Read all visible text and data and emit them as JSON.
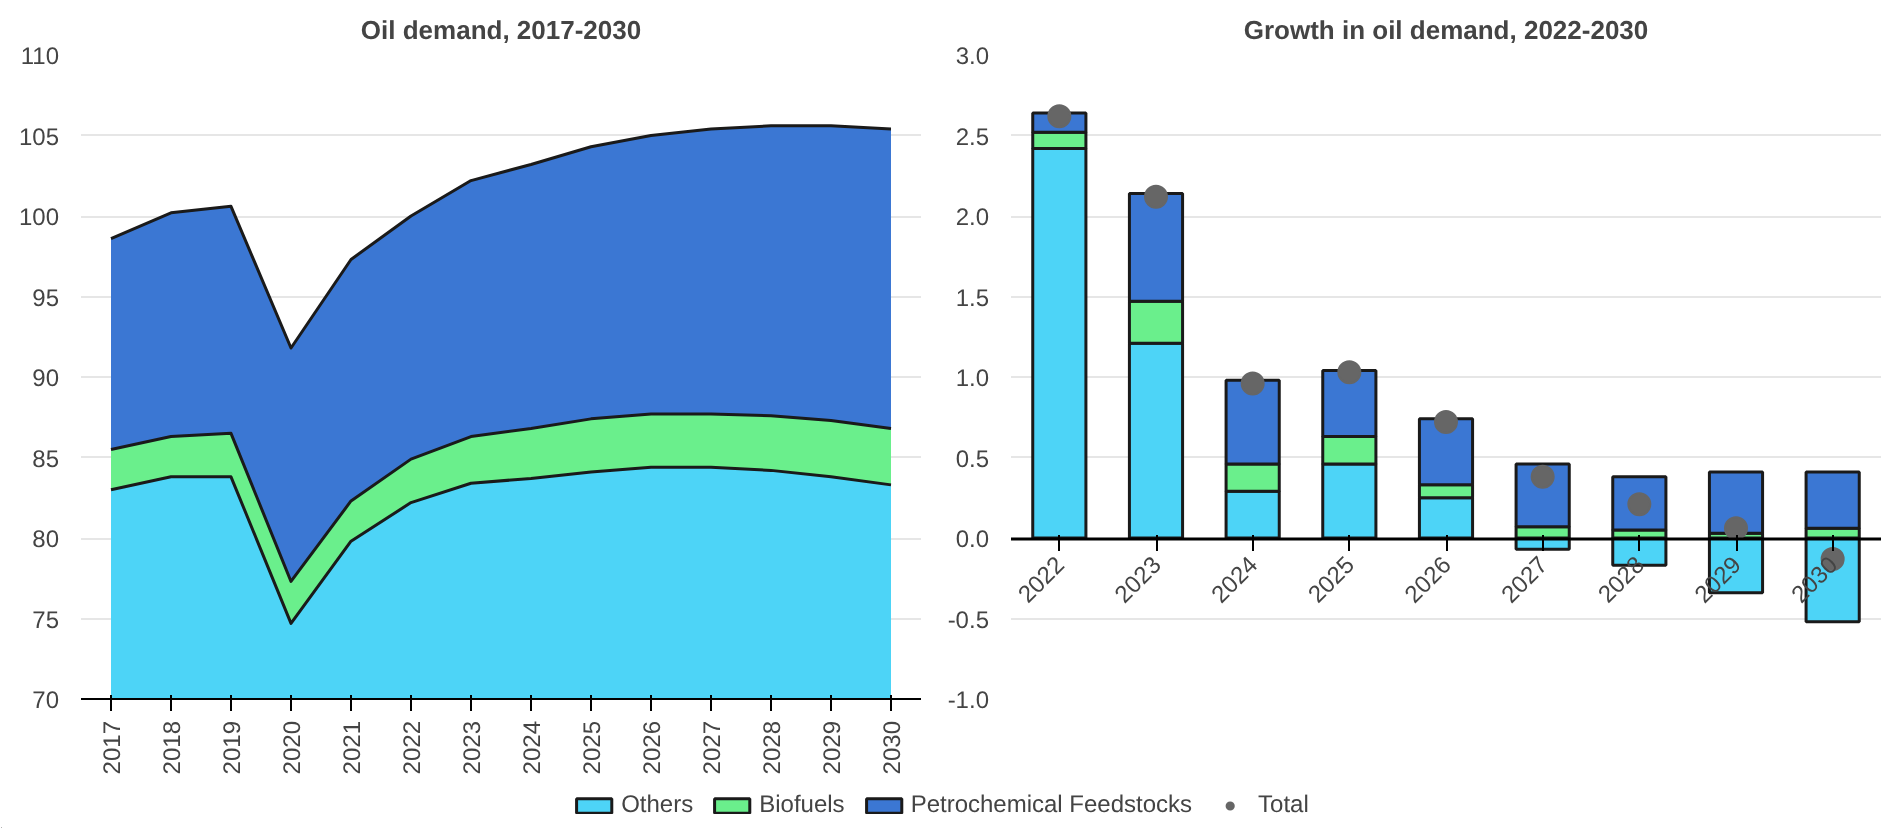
{
  "chart_data": [
    {
      "type": "area",
      "title": "Oil demand, 2017-2030",
      "grid": "y",
      "categories": [
        "2017",
        "2018",
        "2019",
        "2020",
        "2021",
        "2022",
        "2023",
        "2024",
        "2025",
        "2026",
        "2027",
        "2028",
        "2029",
        "2030"
      ],
      "ylim": [
        70,
        110
      ],
      "yticks": [
        70,
        75,
        80,
        85,
        90,
        95,
        100,
        105,
        110
      ],
      "series": [
        {
          "color": "#4dd4f7",
          "values": [
            83.0,
            83.8,
            83.8,
            74.7,
            79.8,
            82.2,
            83.4,
            83.7,
            84.1,
            84.4,
            84.4,
            84.2,
            83.8,
            83.3
          ]
        },
        {
          "color": "#6aef8c",
          "values": [
            85.5,
            86.3,
            86.5,
            77.3,
            82.3,
            84.9,
            86.3,
            86.8,
            87.4,
            87.7,
            87.7,
            87.6,
            87.3,
            86.8
          ]
        },
        {
          "color": "#3b77d3",
          "values": [
            98.6,
            100.2,
            100.6,
            91.8,
            97.3,
            100.0,
            102.2,
            103.2,
            104.3,
            105.0,
            105.4,
            105.6,
            105.6,
            105.4
          ]
        }
      ]
    },
    {
      "type": "bar",
      "title": "Growth in oil demand, 2022-2030",
      "stacked": true,
      "grid": "y",
      "legend": "bottom",
      "categories": [
        "2022",
        "2023",
        "2024",
        "2025",
        "2026",
        "2027",
        "2028",
        "2029",
        "2030"
      ],
      "ylim": [
        -1,
        3
      ],
      "yticks": [
        {
          "value": -1,
          "label": "-1.0"
        },
        {
          "value": -0.5,
          "label": "-0.5"
        },
        {
          "value": 0,
          "label": "0.0"
        },
        {
          "value": 0.5,
          "label": "0.5"
        },
        {
          "value": 1,
          "label": "1.0"
        },
        {
          "value": 1.5,
          "label": "1.5"
        },
        {
          "value": 2,
          "label": "2.0"
        },
        {
          "value": 2.5,
          "label": "2.5"
        },
        {
          "value": 3,
          "label": "3.0"
        }
      ],
      "series": [
        {
          "name": "Others",
          "color": "#4dd4f7",
          "values": [
            2.42,
            1.21,
            0.29,
            0.46,
            0.25,
            -0.07,
            -0.17,
            -0.34,
            -0.52
          ]
        },
        {
          "name": "Biofuels",
          "color": "#6aef8c",
          "values": [
            0.1,
            0.26,
            0.17,
            0.17,
            0.08,
            0.07,
            0.05,
            0.03,
            0.06
          ]
        },
        {
          "name": "Petrochemical Feedstocks",
          "color": "#3b77d3",
          "values": [
            0.12,
            0.67,
            0.52,
            0.41,
            0.41,
            0.39,
            0.33,
            0.38,
            0.35
          ]
        },
        {
          "name": "Total",
          "type": "scatter",
          "marker": "circle",
          "color": "#666666",
          "values": [
            2.62,
            2.12,
            0.96,
            1.03,
            0.72,
            0.38,
            0.21,
            0.06,
            -0.13
          ]
        }
      ]
    }
  ]
}
